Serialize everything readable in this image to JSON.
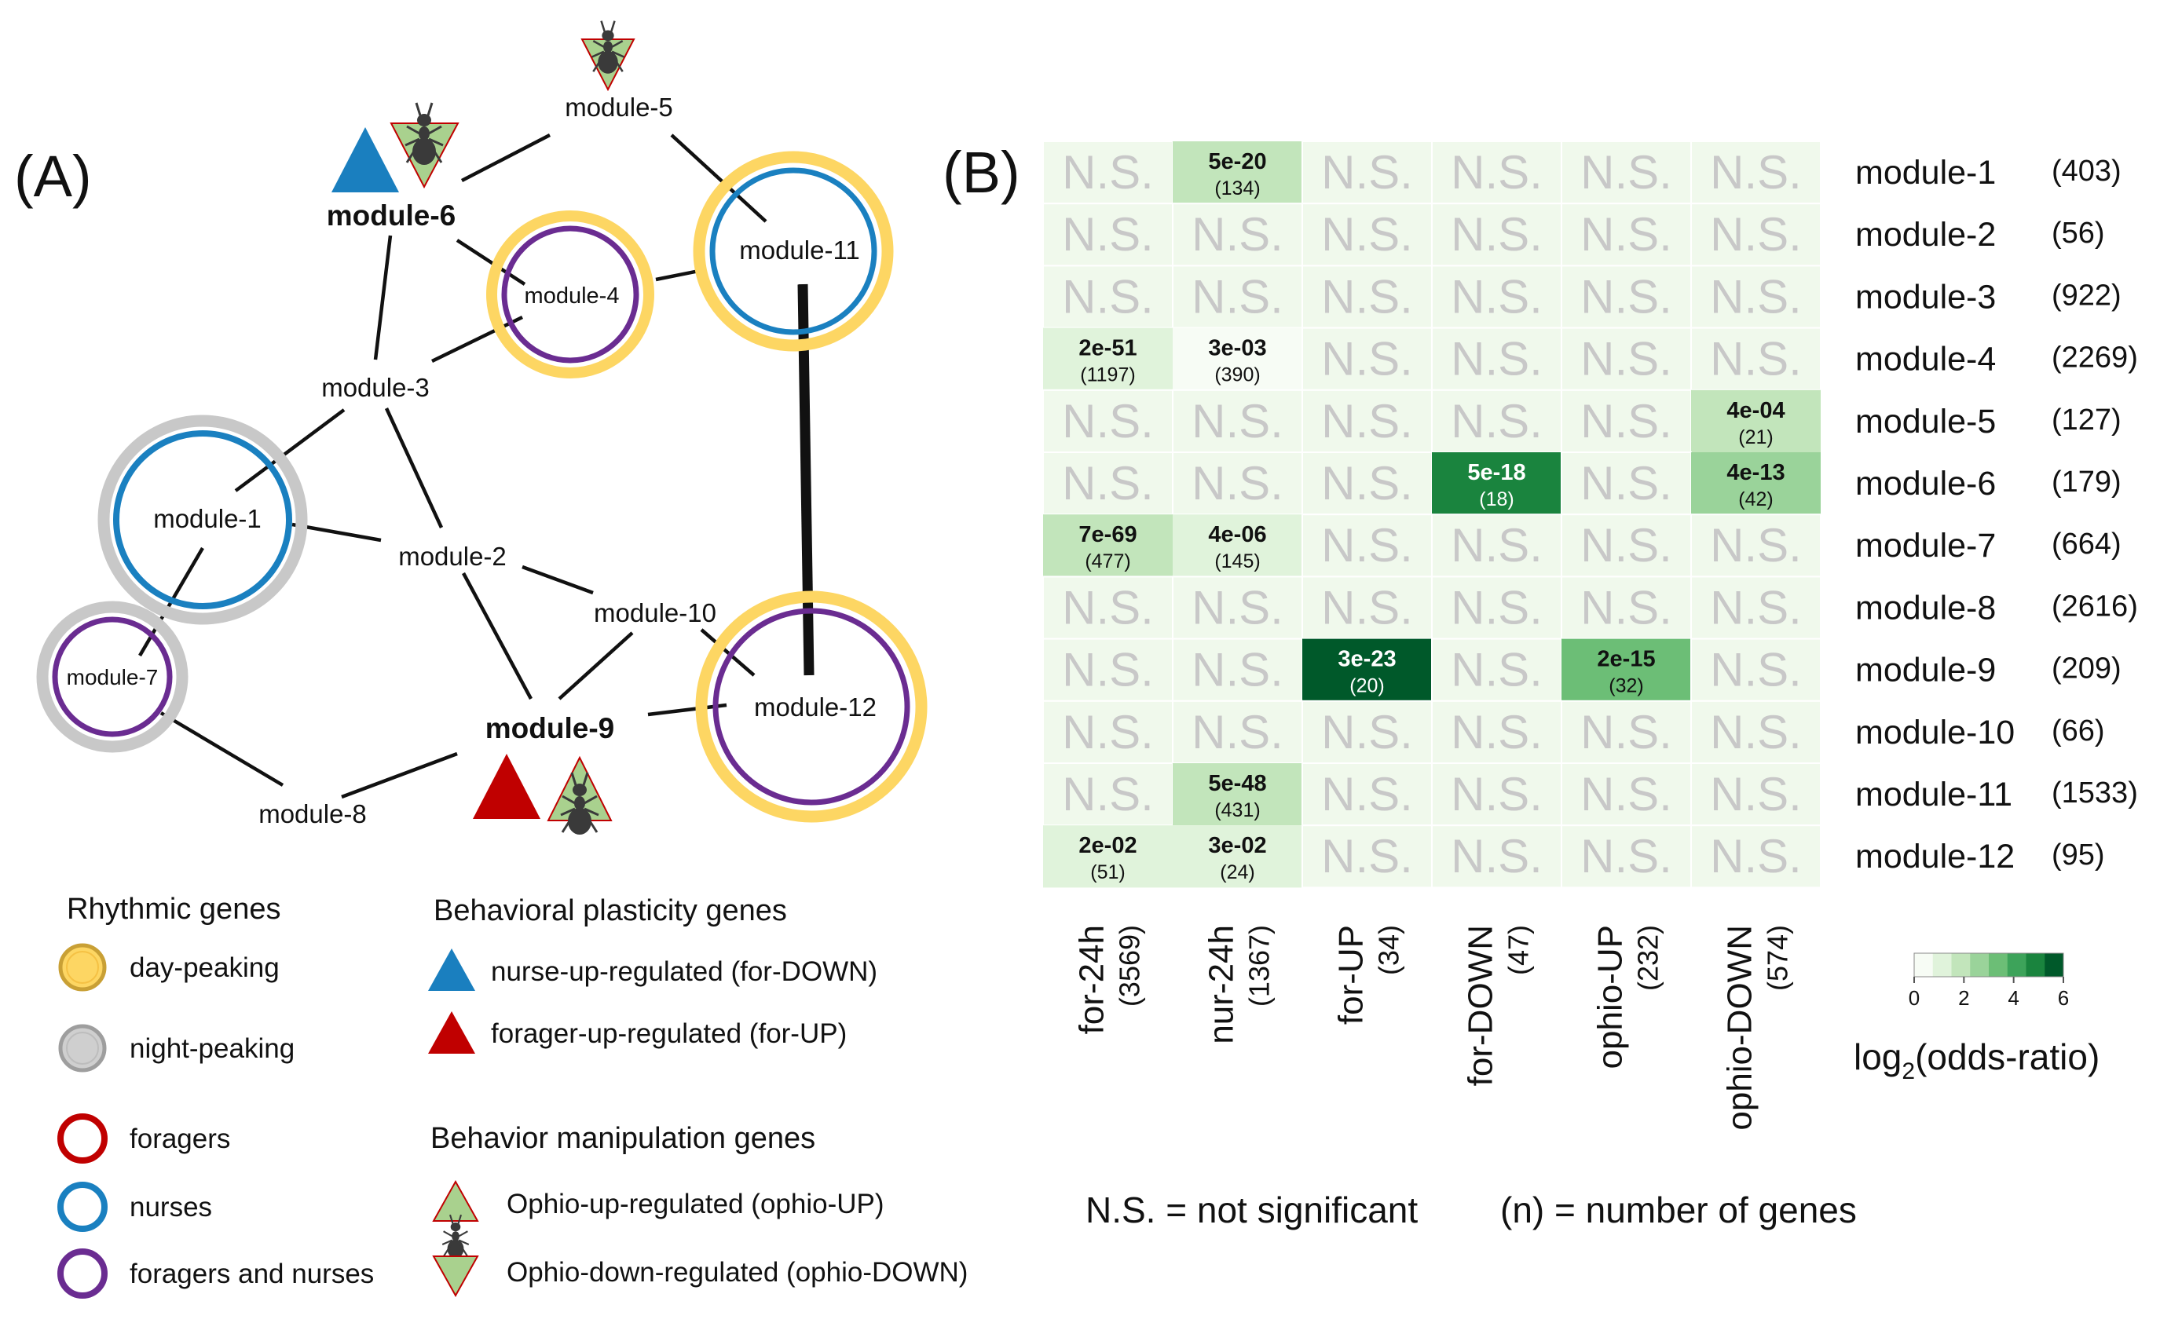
{
  "panel_a": {
    "label": "(A)",
    "nodes": [
      {
        "id": "m5",
        "label": "module-5",
        "bold": false
      },
      {
        "id": "m6",
        "label": "module-6",
        "bold": true
      },
      {
        "id": "m11",
        "label": "module-11",
        "bold": false
      },
      {
        "id": "m4",
        "label": "module-4",
        "bold": false
      },
      {
        "id": "m3",
        "label": "module-3",
        "bold": false
      },
      {
        "id": "m1",
        "label": "module-1",
        "bold": false
      },
      {
        "id": "m2",
        "label": "module-2",
        "bold": false
      },
      {
        "id": "m10",
        "label": "module-10",
        "bold": false
      },
      {
        "id": "m7",
        "label": "module-7",
        "bold": false
      },
      {
        "id": "m9",
        "label": "module-9",
        "bold": true
      },
      {
        "id": "m12",
        "label": "module-12",
        "bold": false
      },
      {
        "id": "m8",
        "label": "module-8",
        "bold": false
      }
    ],
    "legend": {
      "rhythmic_title": "Rhythmic genes",
      "day_peaking": "day-peaking",
      "night_peaking": "night-peaking",
      "foragers": "foragers",
      "nurses": "nurses",
      "foragers_and_nurses": "foragers and nurses",
      "plasticity_title": "Behavioral plasticity genes",
      "nurse_up": "nurse-up-regulated (for-DOWN)",
      "forager_up": "forager-up-regulated (for-UP)",
      "manipulation_title": "Behavior manipulation genes",
      "ophio_up": "Ophio-up-regulated (ophio-UP)",
      "ophio_down": "Ophio-down-regulated (ophio-DOWN)"
    },
    "colors": {
      "day": "#fdd663",
      "day_stroke": "#f5c144",
      "night": "#c8c8c8",
      "foragers": "#c00000",
      "nurses": "#1a80c0",
      "both": "#6a2c91",
      "nurse_triangle": "#1a7fbf",
      "forager_triangle": "#c00000",
      "ophio_triangle": "#a9d18e"
    }
  },
  "panel_b": {
    "label": "(B)",
    "ns_text": "N.S.",
    "columns": [
      {
        "name": "for-24h",
        "count": "(3569)"
      },
      {
        "name": "nur-24h",
        "count": "(1367)"
      },
      {
        "name": "for-UP",
        "count": "(34)"
      },
      {
        "name": "for-DOWN",
        "count": "(47)"
      },
      {
        "name": "ophio-UP",
        "count": "(232)"
      },
      {
        "name": "ophio-DOWN",
        "count": "(574)"
      }
    ],
    "rows": [
      {
        "name": "module-1",
        "count": "(403)"
      },
      {
        "name": "module-2",
        "count": "(56)"
      },
      {
        "name": "module-3",
        "count": "(922)"
      },
      {
        "name": "module-4",
        "count": "(2269)"
      },
      {
        "name": "module-5",
        "count": "(127)"
      },
      {
        "name": "module-6",
        "count": "(179)"
      },
      {
        "name": "module-7",
        "count": "(664)"
      },
      {
        "name": "module-8",
        "count": "(2616)"
      },
      {
        "name": "module-9",
        "count": "(209)"
      },
      {
        "name": "module-10",
        "count": "(66)"
      },
      {
        "name": "module-11",
        "count": "(1533)"
      },
      {
        "name": "module-12",
        "count": "(95)"
      }
    ],
    "significant_cells": [
      {
        "row": 0,
        "col": 1,
        "p": "5e-20",
        "n": "(134)",
        "log2or": 2.0
      },
      {
        "row": 3,
        "col": 0,
        "p": "2e-51",
        "n": "(1197)",
        "log2or": 1.0
      },
      {
        "row": 3,
        "col": 1,
        "p": "3e-03",
        "n": "(390)",
        "log2or": 0.3
      },
      {
        "row": 4,
        "col": 5,
        "p": "4e-04",
        "n": "(21)",
        "log2or": 2.0
      },
      {
        "row": 5,
        "col": 3,
        "p": "5e-18",
        "n": "(18)",
        "log2or": 6.0
      },
      {
        "row": 5,
        "col": 5,
        "p": "4e-13",
        "n": "(42)",
        "log2or": 3.0
      },
      {
        "row": 6,
        "col": 0,
        "p": "7e-69",
        "n": "(477)",
        "log2or": 2.0
      },
      {
        "row": 6,
        "col": 1,
        "p": "4e-06",
        "n": "(145)",
        "log2or": 1.0
      },
      {
        "row": 8,
        "col": 2,
        "p": "3e-23",
        "n": "(20)",
        "log2or": 6.5
      },
      {
        "row": 8,
        "col": 4,
        "p": "2e-15",
        "n": "(32)",
        "log2or": 3.8
      },
      {
        "row": 10,
        "col": 1,
        "p": "5e-48",
        "n": "(431)",
        "log2or": 1.5
      },
      {
        "row": 11,
        "col": 0,
        "p": "2e-02",
        "n": "(51)",
        "log2or": 0.5
      },
      {
        "row": 11,
        "col": 1,
        "p": "3e-02",
        "n": "(24)",
        "log2or": 0.6
      }
    ],
    "scale": {
      "ticks": [
        "0",
        "2",
        "4",
        "6"
      ],
      "title_main": "log",
      "title_sub": "2",
      "title_rest": "(odds-ratio)",
      "colors": [
        "#f7fcf5",
        "#e0f3db",
        "#c2e5bb",
        "#9ad39a",
        "#6cbe76",
        "#3da35a",
        "#1a843e",
        "#00592a"
      ]
    },
    "notes": {
      "ns_def": "N.S. = not significant",
      "n_def": "(n) = number of genes"
    },
    "ns_fill": "#f0f9ec"
  }
}
